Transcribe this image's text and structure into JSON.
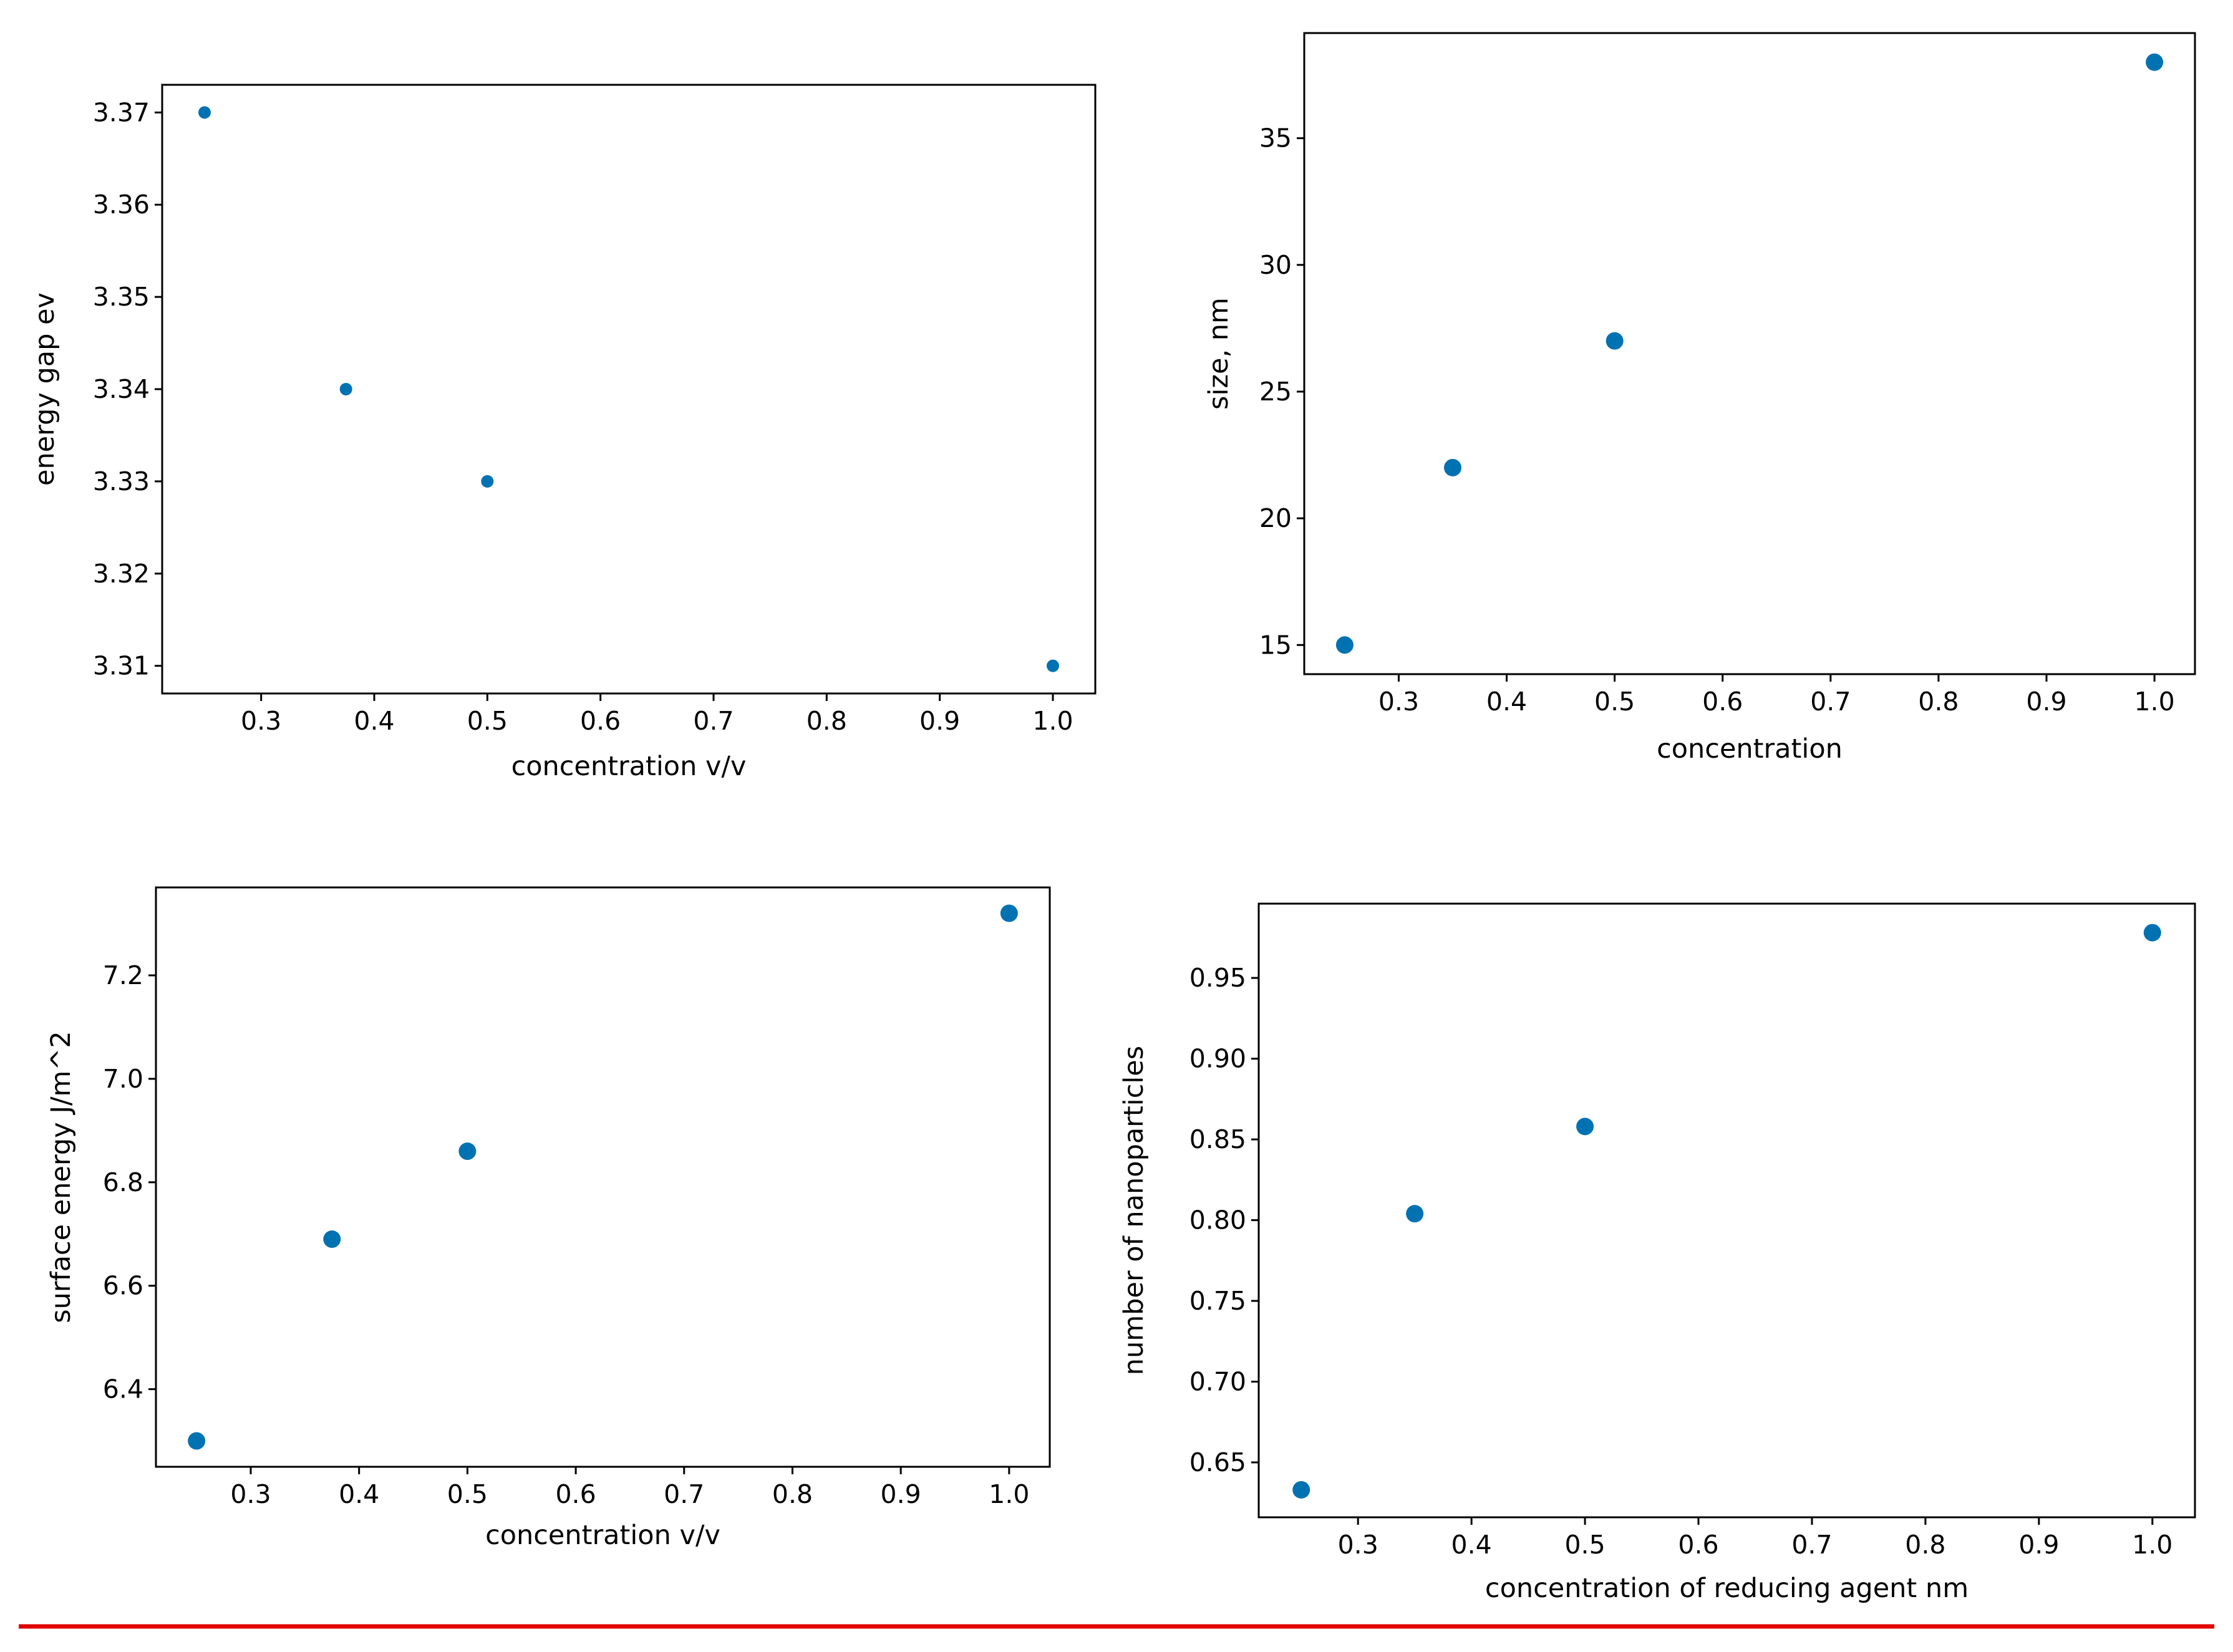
{
  "colors": {
    "marker": "#0072b2",
    "divider": "#e00000",
    "axes": "#000000"
  },
  "chart_data": [
    {
      "type": "scatter",
      "xlabel": "concentration v/v",
      "ylabel": "energy gap ev",
      "x": [
        0.25,
        0.375,
        0.5,
        1.0
      ],
      "y": [
        3.37,
        3.34,
        3.33,
        3.31
      ],
      "xlim": [
        0.2125,
        1.0375
      ],
      "ylim": [
        3.307,
        3.373
      ],
      "xticks": [
        0.3,
        0.4,
        0.5,
        0.6,
        0.7,
        0.8,
        0.9,
        1.0
      ],
      "xtick_labels": [
        "0.3",
        "0.4",
        "0.5",
        "0.6",
        "0.7",
        "0.8",
        "0.9",
        "1.0"
      ],
      "yticks": [
        3.31,
        3.32,
        3.33,
        3.34,
        3.35,
        3.36,
        3.37
      ],
      "ytick_labels": [
        "3.31",
        "3.32",
        "3.33",
        "3.34",
        "3.35",
        "3.36",
        "3.37"
      ],
      "grid": false,
      "marker": "small-dot"
    },
    {
      "type": "scatter",
      "xlabel": "concentration",
      "ylabel": "size, nm",
      "x": [
        0.25,
        0.35,
        0.5,
        1.0
      ],
      "y": [
        15,
        22,
        27,
        38
      ],
      "xlim": [
        0.2125,
        1.0375
      ],
      "ylim": [
        13.85,
        39.15
      ],
      "xticks": [
        0.3,
        0.4,
        0.5,
        0.6,
        0.7,
        0.8,
        0.9,
        1.0
      ],
      "xtick_labels": [
        "0.3",
        "0.4",
        "0.5",
        "0.6",
        "0.7",
        "0.8",
        "0.9",
        "1.0"
      ],
      "yticks": [
        15,
        20,
        25,
        30,
        35
      ],
      "ytick_labels": [
        "15",
        "20",
        "25",
        "30",
        "35"
      ],
      "grid": false,
      "marker": "dot"
    },
    {
      "type": "scatter",
      "xlabel": "concentration v/v",
      "ylabel": "surface energy J/m^2",
      "x": [
        0.25,
        0.375,
        0.5,
        1.0
      ],
      "y": [
        6.3,
        6.69,
        6.86,
        7.32
      ],
      "xlim": [
        0.2125,
        1.0375
      ],
      "ylim": [
        6.25,
        7.37
      ],
      "xticks": [
        0.3,
        0.4,
        0.5,
        0.6,
        0.7,
        0.8,
        0.9,
        1.0
      ],
      "xtick_labels": [
        "0.3",
        "0.4",
        "0.5",
        "0.6",
        "0.7",
        "0.8",
        "0.9",
        "1.0"
      ],
      "yticks": [
        6.4,
        6.6,
        6.8,
        7.0,
        7.2
      ],
      "ytick_labels": [
        "6.4",
        "6.6",
        "6.8",
        "7.0",
        "7.2"
      ],
      "grid": false,
      "marker": "dot"
    },
    {
      "type": "scatter",
      "xlabel": "concentration of reducing agent nm",
      "ylabel": "number of nanoparticles",
      "x": [
        0.25,
        0.35,
        0.5,
        1.0
      ],
      "y": [
        0.633,
        0.804,
        0.858,
        0.978
      ],
      "xlim": [
        0.2125,
        1.0375
      ],
      "ylim": [
        0.616,
        0.996
      ],
      "xticks": [
        0.3,
        0.4,
        0.5,
        0.6,
        0.7,
        0.8,
        0.9,
        1.0
      ],
      "xtick_labels": [
        "0.3",
        "0.4",
        "0.5",
        "0.6",
        "0.7",
        "0.8",
        "0.9",
        "1.0"
      ],
      "yticks": [
        0.65,
        0.7,
        0.75,
        0.8,
        0.85,
        0.9,
        0.95
      ],
      "ytick_labels": [
        "0.65",
        "0.70",
        "0.75",
        "0.80",
        "0.85",
        "0.90",
        "0.95"
      ],
      "grid": false,
      "marker": "dot"
    }
  ]
}
